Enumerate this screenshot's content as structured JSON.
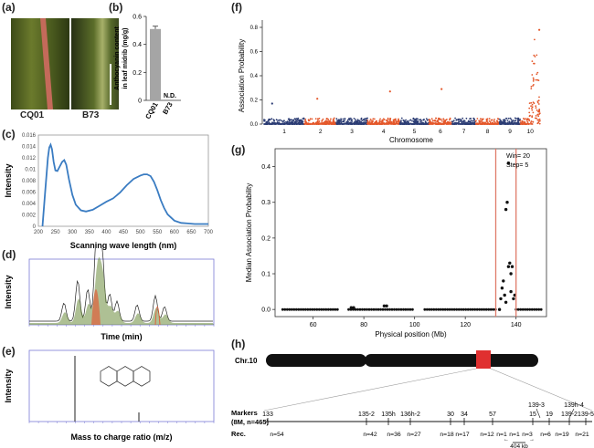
{
  "panel_labels": {
    "a": "(a)",
    "b": "(b)",
    "c": "(c)",
    "d": "(d)",
    "e": "(e)",
    "f": "(f)",
    "g": "(g)",
    "h": "(h)"
  },
  "panel_a": {
    "left_label": "CQ01",
    "right_label": "B73"
  },
  "colors": {
    "blue_line": "#3a7cc2",
    "navy": "#2c3d74",
    "orange": "#e4582b",
    "red_box": "#e03030",
    "red_line": "#e07b6a",
    "gray_bar": "#a5a5a5"
  },
  "chart_data": [
    {
      "id": "b",
      "type": "bar",
      "ylabel": "Anthocyanin content in leaf midrib (mg/g)",
      "categories": [
        "CQ01",
        "B73"
      ],
      "values": [
        0.51,
        0
      ],
      "error": [
        0.02,
        0
      ],
      "annotations": [
        "",
        "N.D."
      ],
      "ylim": [
        0,
        0.6
      ],
      "yticks": [
        "0",
        "0.2",
        "0.4",
        "0.6"
      ]
    },
    {
      "id": "c",
      "type": "line",
      "xlabel": "Scanning wave length (nm)",
      "ylabel": "Intensity",
      "xlim": [
        200,
        700
      ],
      "ylim": [
        0,
        0.016
      ],
      "xticks": [
        "200",
        "250",
        "300",
        "350",
        "400",
        "450",
        "500",
        "550",
        "600",
        "650",
        "700"
      ],
      "yticks": [
        "0",
        "0.002",
        "0.004",
        "0.006",
        "0.008",
        "0.01",
        "0.012",
        "0.014",
        "0.016"
      ],
      "x": [
        212,
        220,
        228,
        232,
        236,
        240,
        245,
        250,
        256,
        262,
        270,
        276,
        282,
        290,
        300,
        310,
        325,
        340,
        360,
        380,
        400,
        420,
        440,
        460,
        480,
        500,
        510,
        520,
        530,
        540,
        550,
        560,
        570,
        580,
        600,
        620,
        640,
        660,
        680,
        700
      ],
      "y": [
        0.0,
        0.006,
        0.012,
        0.0138,
        0.0143,
        0.0135,
        0.0113,
        0.0098,
        0.0097,
        0.0104,
        0.0113,
        0.0116,
        0.0108,
        0.0082,
        0.0055,
        0.0038,
        0.0028,
        0.0026,
        0.0029,
        0.0036,
        0.0043,
        0.0049,
        0.0059,
        0.0072,
        0.0083,
        0.0089,
        0.0091,
        0.0091,
        0.0088,
        0.0078,
        0.0063,
        0.0046,
        0.0032,
        0.0021,
        0.001,
        0.0006,
        0.0005,
        0.0004,
        0.0004,
        0.0004
      ]
    },
    {
      "id": "d",
      "type": "line",
      "xlabel": "Time (min)",
      "ylabel": "Intensity"
    },
    {
      "id": "e",
      "type": "bar",
      "xlabel": "Mass to charge ratio (m/z)",
      "ylabel": "Intensity"
    },
    {
      "id": "f",
      "type": "scatter",
      "xlabel": "Chromosome",
      "ylabel": "Association Probability",
      "ylim": [
        0,
        0.8
      ],
      "yticks": [
        "0.0",
        "0.2",
        "0.4",
        "0.6",
        "0.8"
      ],
      "categories": [
        "1",
        "2",
        "3",
        "4",
        "5",
        "6",
        "7",
        "8",
        "9",
        "10"
      ],
      "chromosome_lengths_mb": [
        308,
        244,
        236,
        246,
        224,
        174,
        182,
        181,
        160,
        150
      ],
      "notable_peaks": [
        {
          "chromosome": "1",
          "probability": 0.17
        },
        {
          "chromosome": "2",
          "probability": 0.21
        },
        {
          "chromosome": "4",
          "probability": 0.27
        },
        {
          "chromosome": "6",
          "probability": 0.29
        },
        {
          "chromosome": "10",
          "probability": 0.78
        }
      ]
    },
    {
      "id": "g",
      "type": "scatter",
      "xlabel": "Physical position (Mb)",
      "ylabel": "Median Association Probability",
      "xlim": [
        45,
        152
      ],
      "ylim": [
        -0.02,
        0.45
      ],
      "xticks": [
        "60",
        "80",
        "100",
        "120",
        "140"
      ],
      "yticks": [
        "0.0",
        "0.1",
        "0.2",
        "0.3",
        "0.4"
      ],
      "legend": [
        "Win= 20",
        "Step= 5"
      ],
      "highlight_region_mb": [
        132,
        140
      ],
      "x": [
        133.5,
        134,
        134.5,
        135,
        135.5,
        136,
        136,
        136.5,
        137,
        137,
        137.5,
        138,
        138,
        138.5,
        139,
        139.5,
        88,
        89,
        75,
        76
      ],
      "y": [
        0.0,
        0.03,
        0.06,
        0.08,
        0.04,
        0.02,
        0.28,
        0.3,
        0.41,
        0.12,
        0.13,
        0.1,
        0.05,
        0.12,
        0.03,
        0.04,
        0.01,
        0.01,
        0.005,
        0.005
      ]
    }
  ],
  "panel_h": {
    "chr_label": "Chr.10",
    "markers_label": "Markers",
    "population_label": "(8M, n=465)",
    "rec_label": "Rec.",
    "markers_top": [
      {
        "label": "139-3"
      },
      {
        "label": "139h-4"
      }
    ],
    "markers": [
      {
        "label": "133"
      },
      {
        "label": "135-2"
      },
      {
        "label": "135h"
      },
      {
        "label": "136h-2"
      },
      {
        "label": "30"
      },
      {
        "label": "34"
      },
      {
        "label": "57"
      },
      {
        "label": "15"
      },
      {
        "label": "19"
      },
      {
        "label": "139-2"
      },
      {
        "label": "139-5"
      }
    ],
    "rec": [
      {
        "label": "n=54"
      },
      {
        "label": "n=42"
      },
      {
        "label": "n=36"
      },
      {
        "label": "n=27"
      },
      {
        "label": "n=18"
      },
      {
        "label": "n=17"
      },
      {
        "label": "n=12"
      },
      {
        "label": "n=1"
      },
      {
        "label": "n=1"
      },
      {
        "label": "n=3"
      },
      {
        "label": "n=6"
      },
      {
        "label": "n=19"
      },
      {
        "label": "n=21"
      }
    ],
    "interval": "404 kb"
  }
}
